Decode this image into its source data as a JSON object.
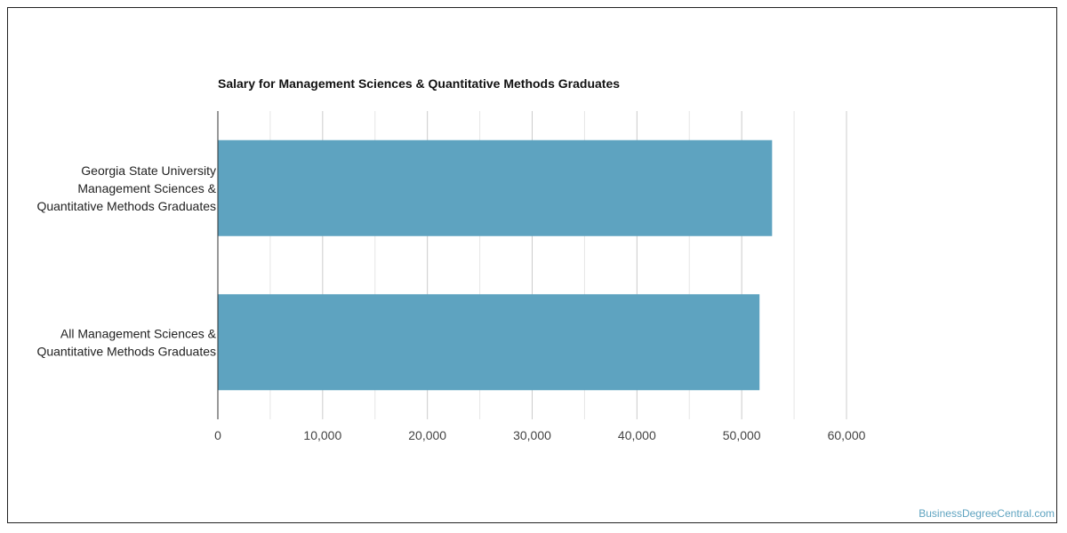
{
  "chart_data": {
    "type": "bar",
    "orientation": "horizontal",
    "title": "Salary for Management Sciences & Quantitative Methods Graduates",
    "categories": [
      [
        "Georgia State University",
        "Management Sciences &",
        "Quantitative Methods Graduates"
      ],
      [
        "All Management Sciences &",
        "Quantitative Methods Graduates"
      ]
    ],
    "values": [
      52900,
      51700
    ],
    "xlim": [
      0,
      60000
    ],
    "x_ticks": [
      0,
      10000,
      20000,
      30000,
      40000,
      50000,
      60000
    ],
    "x_tick_labels": [
      "0",
      "10,000",
      "20,000",
      "30,000",
      "40,000",
      "50,000",
      "60,000"
    ],
    "grid": true,
    "bar_color": "#5ea3c0"
  },
  "watermark": "BusinessDegreeCentral.com"
}
